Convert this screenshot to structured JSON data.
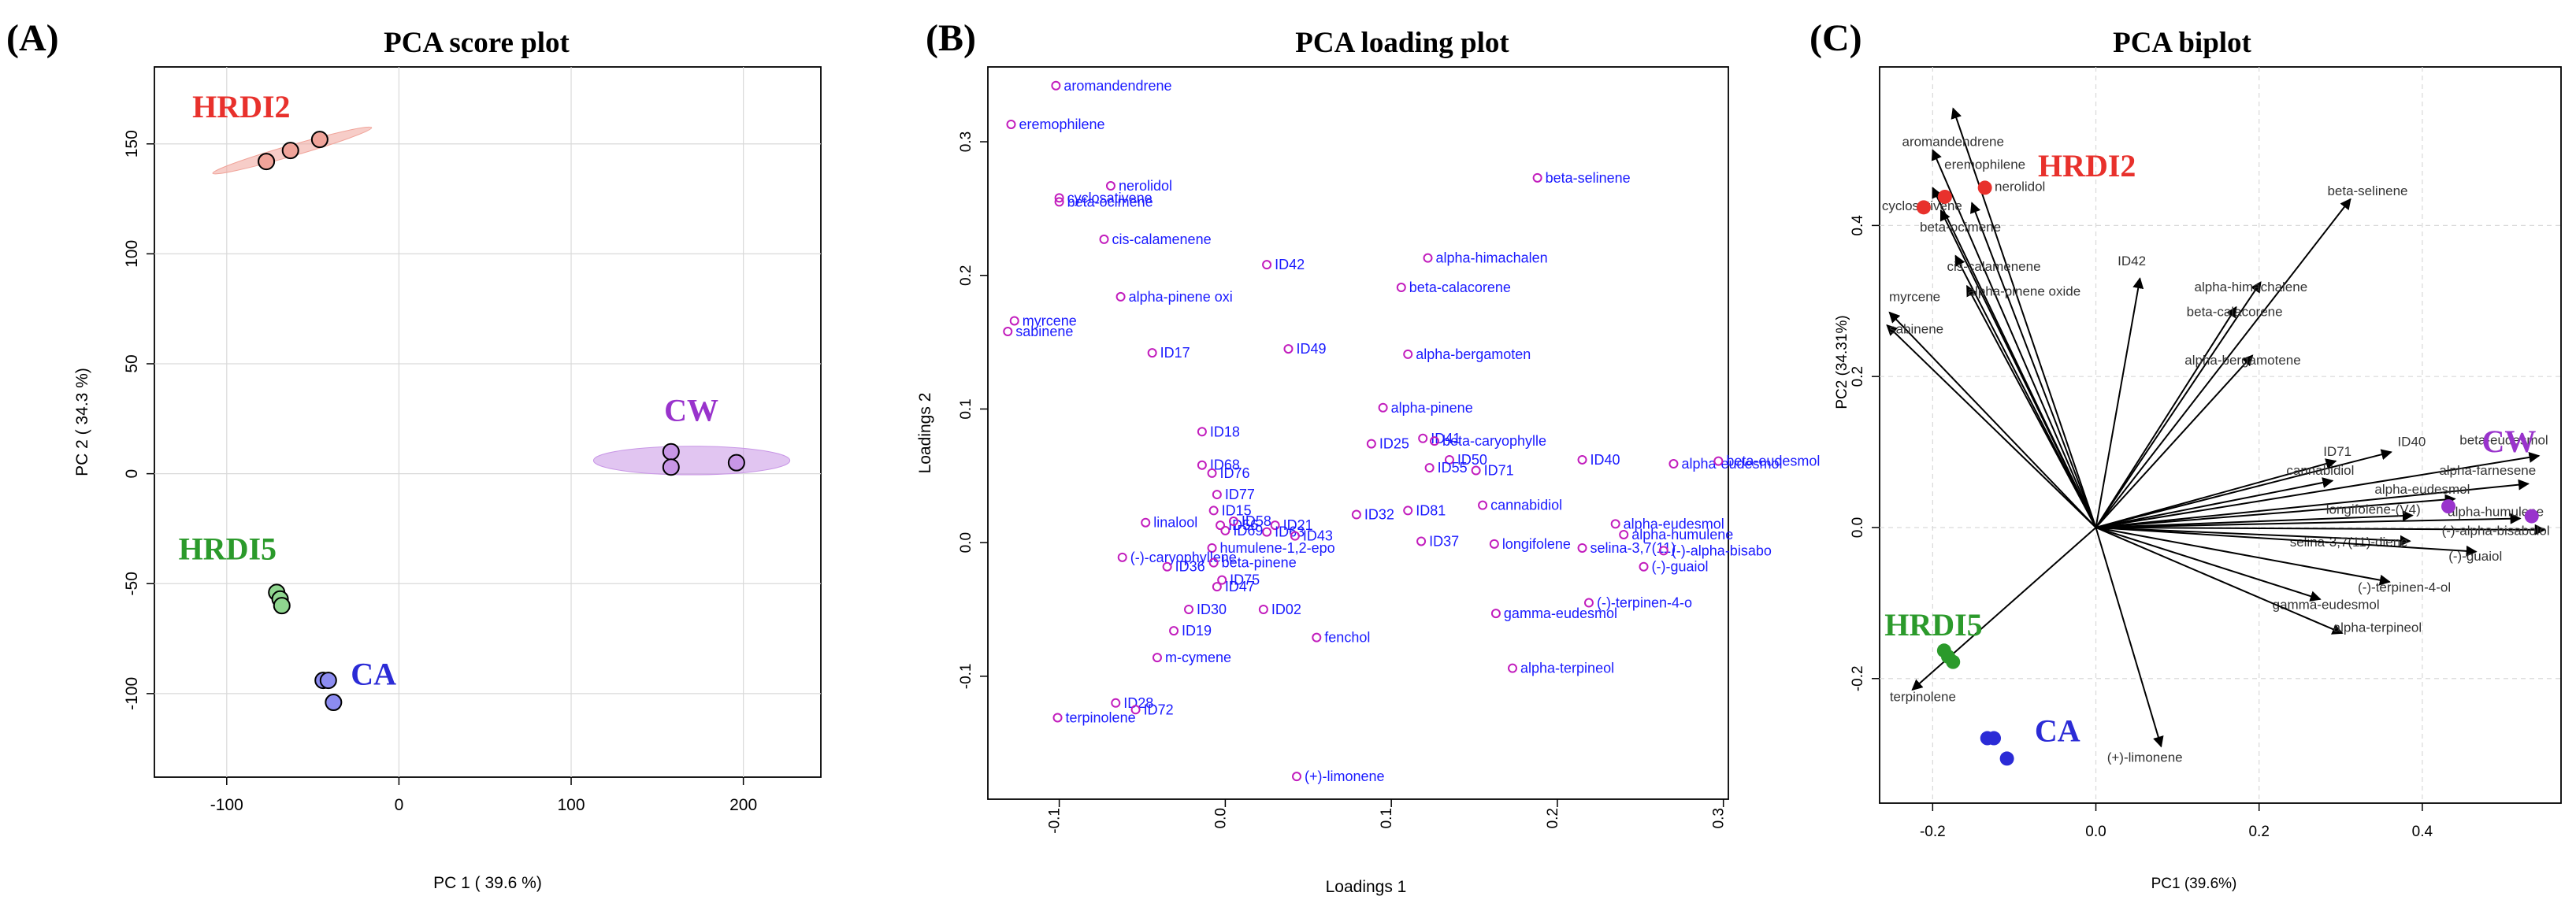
{
  "figure": {
    "panels": [
      {
        "letter": "(A)",
        "title": "PCA score plot"
      },
      {
        "letter": "(B)",
        "title": "PCA loading plot"
      },
      {
        "letter": "(C)",
        "title": "PCA biplot"
      }
    ]
  },
  "chart_data": [
    {
      "type": "scatter",
      "title": "PCA score plot",
      "xlabel": "PC 1 ( 39.6 %)",
      "ylabel": "PC 2 ( 34.3 %)",
      "xlim": [
        -142,
        245
      ],
      "ylim": [
        -138,
        185
      ],
      "xticks": [
        -100,
        0,
        100,
        200
      ],
      "xtick_labels": [
        "-100",
        "0",
        "100",
        "200"
      ],
      "yticks": [
        -100,
        -50,
        0,
        50,
        100,
        150
      ],
      "ytick_labels": [
        "-100",
        "-50",
        "0",
        "50",
        "100",
        "150"
      ],
      "grid": true,
      "groups": [
        {
          "name": "HRDI2",
          "color": "#e8312c",
          "fill": "#f0a49a",
          "points": [
            [
              -77,
              142
            ],
            [
              -63,
              147
            ],
            [
              -46,
              152
            ]
          ],
          "ellipse": {
            "cx": -62,
            "cy": 147,
            "rx": 48,
            "ry": 2.5,
            "angle": 0.28
          },
          "label_at": [
            -120,
            162
          ]
        },
        {
          "name": "CW",
          "color": "#9933cc",
          "fill": "#c896e6",
          "points": [
            [
              158,
              10
            ],
            [
              158,
              3
            ],
            [
              196,
              5
            ]
          ],
          "ellipse": {
            "cx": 170,
            "cy": 6,
            "rx": 57,
            "ry": 6.5,
            "angle": 0
          },
          "label_at": [
            154,
            24
          ]
        },
        {
          "name": "HRDI5",
          "color": "#2b9a2b",
          "fill": "#8fd68f",
          "points": [
            [
              -71,
              -54
            ],
            [
              -69,
              -57
            ],
            [
              -68,
              -60
            ]
          ],
          "ellipse": null,
          "label_at": [
            -128,
            -39
          ]
        },
        {
          "name": "CA",
          "color": "#2b2bd6",
          "fill": "#8c8cf0",
          "points": [
            [
              -44,
              -94
            ],
            [
              -41,
              -94
            ],
            [
              -38,
              -104
            ]
          ],
          "ellipse": null,
          "label_at": [
            -28,
            -96
          ]
        }
      ]
    },
    {
      "type": "scatter",
      "title": "PCA loading plot",
      "xlabel": "Loadings 1",
      "ylabel": "Loadings 2",
      "xlim": [
        -0.143,
        0.303
      ],
      "ylim": [
        -0.192,
        0.356
      ],
      "xticks": [
        -0.1,
        0.0,
        0.1,
        0.2,
        0.3
      ],
      "xtick_labels": [
        "-0.1",
        "0.0",
        "0.1",
        "0.2",
        "0.3"
      ],
      "yticks": [
        -0.1,
        0.0,
        0.1,
        0.2,
        0.3
      ],
      "ytick_labels": [
        "-0.1",
        "0.0",
        "0.1",
        "0.2",
        "0.3"
      ],
      "point_color": "#c21dbd",
      "label_color": "#1a1aff",
      "points": [
        {
          "label": "aromandendrene",
          "x": -0.102,
          "y": 0.342
        },
        {
          "label": "eremophilene",
          "x": -0.129,
          "y": 0.313
        },
        {
          "label": "nerolidol",
          "x": -0.069,
          "y": 0.267
        },
        {
          "label": "cyclosativene",
          "x": -0.1,
          "y": 0.258
        },
        {
          "label": "beta-ocimene",
          "x": -0.1,
          "y": 0.255
        },
        {
          "label": "cis-calamenene",
          "x": -0.073,
          "y": 0.227
        },
        {
          "label": "ID42",
          "x": 0.025,
          "y": 0.208
        },
        {
          "label": "alpha-pinene oxi",
          "x": -0.063,
          "y": 0.184
        },
        {
          "label": "myrcene",
          "x": -0.127,
          "y": 0.166
        },
        {
          "label": "sabinene",
          "x": -0.131,
          "y": 0.158
        },
        {
          "label": "ID17",
          "x": -0.044,
          "y": 0.142
        },
        {
          "label": "ID49",
          "x": 0.038,
          "y": 0.145
        },
        {
          "label": "beta-selinene",
          "x": 0.188,
          "y": 0.273
        },
        {
          "label": "alpha-himachalen",
          "x": 0.122,
          "y": 0.213
        },
        {
          "label": "beta-calacorene",
          "x": 0.106,
          "y": 0.191
        },
        {
          "label": "alpha-bergamoten",
          "x": 0.11,
          "y": 0.141
        },
        {
          "label": "alpha-pinene",
          "x": 0.095,
          "y": 0.101
        },
        {
          "label": "ID25",
          "x": 0.088,
          "y": 0.074
        },
        {
          "label": "ID41",
          "x": 0.119,
          "y": 0.078
        },
        {
          "label": "beta-caryophylle",
          "x": 0.126,
          "y": 0.076
        },
        {
          "label": "ID50",
          "x": 0.135,
          "y": 0.062
        },
        {
          "label": "ID55",
          "x": 0.123,
          "y": 0.056
        },
        {
          "label": "ID71",
          "x": 0.151,
          "y": 0.054
        },
        {
          "label": "ID40",
          "x": 0.215,
          "y": 0.062
        },
        {
          "label": "alpha-eudesmol",
          "x": 0.27,
          "y": 0.059
        },
        {
          "label": "beta-eudesmol",
          "x": 0.297,
          "y": 0.061
        },
        {
          "label": "cannabidiol",
          "x": 0.155,
          "y": 0.028
        },
        {
          "label": "ID32",
          "x": 0.079,
          "y": 0.021
        },
        {
          "label": "ID81",
          "x": 0.11,
          "y": 0.024
        },
        {
          "label": "ID37",
          "x": 0.118,
          "y": 0.001
        },
        {
          "label": "longifolene",
          "x": 0.162,
          "y": -0.001
        },
        {
          "label": "selina-3,7(11)",
          "x": 0.215,
          "y": -0.004
        },
        {
          "label": "alpha-eudesmol",
          "x": 0.235,
          "y": 0.014
        },
        {
          "label": "alpha-humulene",
          "x": 0.24,
          "y": 0.006
        },
        {
          "label": "(-)-alpha-bisabo",
          "x": 0.264,
          "y": -0.006
        },
        {
          "label": "(-)-guaiol",
          "x": 0.252,
          "y": -0.018
        },
        {
          "label": "(-)-terpinen-4-o",
          "x": 0.219,
          "y": -0.045
        },
        {
          "label": "gamma-eudesmol",
          "x": 0.163,
          "y": -0.053
        },
        {
          "label": "alpha-terpineol",
          "x": 0.173,
          "y": -0.094
        },
        {
          "label": "ID18",
          "x": -0.014,
          "y": 0.083
        },
        {
          "label": "ID68",
          "x": -0.014,
          "y": 0.058
        },
        {
          "label": "ID76",
          "x": -0.008,
          "y": 0.052
        },
        {
          "label": "ID77",
          "x": -0.005,
          "y": 0.036
        },
        {
          "label": "ID15",
          "x": -0.007,
          "y": 0.024
        },
        {
          "label": "ID21",
          "x": 0.03,
          "y": 0.013
        },
        {
          "label": "ID63",
          "x": 0.025,
          "y": 0.008
        },
        {
          "label": "ID43",
          "x": 0.042,
          "y": 0.005
        },
        {
          "label": "ID69",
          "x": 0.0,
          "y": 0.009
        },
        {
          "label": "ID56",
          "x": -0.003,
          "y": 0.013
        },
        {
          "label": "ID58",
          "x": 0.005,
          "y": 0.016
        },
        {
          "label": "linalool",
          "x": -0.048,
          "y": 0.015
        },
        {
          "label": "humulene-1,2-epo",
          "x": -0.008,
          "y": -0.004
        },
        {
          "label": "(-)-caryophyllene",
          "x": -0.062,
          "y": -0.011
        },
        {
          "label": "ID36",
          "x": -0.035,
          "y": -0.018
        },
        {
          "label": "beta-pinene",
          "x": -0.007,
          "y": -0.015
        },
        {
          "label": "ID75",
          "x": -0.002,
          "y": -0.028
        },
        {
          "label": "ID47",
          "x": -0.005,
          "y": -0.033
        },
        {
          "label": "ID30",
          "x": -0.022,
          "y": -0.05
        },
        {
          "label": "ID02",
          "x": 0.023,
          "y": -0.05
        },
        {
          "label": "ID19",
          "x": -0.031,
          "y": -0.066
        },
        {
          "label": "fenchol",
          "x": 0.055,
          "y": -0.071
        },
        {
          "label": "m-cymene",
          "x": -0.041,
          "y": -0.086
        },
        {
          "label": "ID28",
          "x": -0.066,
          "y": -0.12
        },
        {
          "label": "ID72",
          "x": -0.054,
          "y": -0.125
        },
        {
          "label": "terpinolene",
          "x": -0.101,
          "y": -0.131
        },
        {
          "label": "(+)-limonene",
          "x": 0.043,
          "y": -0.175
        }
      ]
    },
    {
      "type": "scatter",
      "title": "PCA biplot",
      "xlabel": "PC1 (39.6%)",
      "ylabel": "PC2 (34.31%)",
      "xlim": [
        -0.265,
        0.57
      ],
      "ylim": [
        -0.365,
        0.61
      ],
      "xticks": [
        -0.2,
        0.0,
        0.2,
        0.4
      ],
      "xtick_labels": [
        "-0.2",
        "0.0",
        "0.2",
        "0.4"
      ],
      "yticks": [
        -0.2,
        0.0,
        0.2,
        0.4
      ],
      "ytick_labels": [
        "-0.2",
        "0.0",
        "0.2",
        "0.4"
      ],
      "grid": true,
      "groups": [
        {
          "name": "HRDI2",
          "color": "#e8312c",
          "points": [
            [
              -0.211,
              0.424
            ],
            [
              -0.185,
              0.438
            ],
            [
              -0.136,
              0.45
            ]
          ],
          "label_at": [
            -0.071,
            0.465
          ]
        },
        {
          "name": "CW",
          "color": "#9933cc",
          "points": [
            [
              0.432,
              0.028
            ],
            [
              0.534,
              0.015
            ]
          ],
          "label_at": [
            0.473,
            0.1
          ]
        },
        {
          "name": "HRDI5",
          "color": "#2b9a2b",
          "points": [
            [
              -0.186,
              -0.163
            ],
            [
              -0.181,
              -0.171
            ],
            [
              -0.175,
              -0.178
            ]
          ],
          "label_at": [
            -0.259,
            -0.143
          ]
        },
        {
          "name": "CA",
          "color": "#2b2bd6",
          "points": [
            [
              -0.133,
              -0.279
            ],
            [
              -0.125,
              -0.279
            ],
            [
              -0.109,
              -0.306
            ]
          ],
          "label_at": [
            -0.075,
            -0.283
          ]
        }
      ],
      "arrows": [
        {
          "label": "aromandendrene",
          "x": -0.175,
          "y": 0.555,
          "lx": -0.175,
          "ly": 0.505
        },
        {
          "label": "eremophilene",
          "x": -0.2,
          "y": 0.5,
          "lx": -0.136,
          "ly": 0.475
        },
        {
          "label": "nerolidol",
          "x": -0.152,
          "y": 0.43,
          "lx": -0.093,
          "ly": 0.446
        },
        {
          "label": "cyclosativene",
          "x": -0.2,
          "y": 0.45,
          "lx": -0.213,
          "ly": 0.42
        },
        {
          "label": "beta-ocimene",
          "x": -0.19,
          "y": 0.42,
          "lx": -0.166,
          "ly": 0.392
        },
        {
          "label": "cis-calamenene",
          "x": -0.172,
          "y": 0.36,
          "lx": -0.125,
          "ly": 0.34
        },
        {
          "label": "alpha-pinene oxide",
          "x": -0.158,
          "y": 0.32,
          "lx": -0.088,
          "ly": 0.307
        },
        {
          "label": "ID42",
          "x": 0.054,
          "y": 0.33,
          "lx": 0.044,
          "ly": 0.347
        },
        {
          "label": "beta-selinene",
          "x": 0.312,
          "y": 0.435,
          "lx": 0.333,
          "ly": 0.44
        },
        {
          "label": "alpha-himachalene",
          "x": 0.202,
          "y": 0.325,
          "lx": 0.19,
          "ly": 0.313
        },
        {
          "label": "beta-calacorene",
          "x": 0.172,
          "y": 0.292,
          "lx": 0.17,
          "ly": 0.28
        },
        {
          "label": "alpha-bergamotene",
          "x": 0.192,
          "y": 0.228,
          "lx": 0.18,
          "ly": 0.216
        },
        {
          "label": "myrcene",
          "x": -0.253,
          "y": 0.285,
          "lx": -0.222,
          "ly": 0.3
        },
        {
          "label": "sabinene",
          "x": -0.256,
          "y": 0.268,
          "lx": -0.22,
          "ly": 0.257
        },
        {
          "label": "ID71",
          "x": 0.294,
          "y": 0.088,
          "lx": 0.296,
          "ly": 0.095
        },
        {
          "label": "ID40",
          "x": 0.362,
          "y": 0.1,
          "lx": 0.387,
          "ly": 0.108
        },
        {
          "label": "beta-eudesmol",
          "x": 0.543,
          "y": 0.095,
          "lx": 0.5,
          "ly": 0.11
        },
        {
          "label": "cannabidiol",
          "x": 0.29,
          "y": 0.062,
          "lx": 0.275,
          "ly": 0.07
        },
        {
          "label": "alpha-farnesene",
          "x": 0.53,
          "y": 0.058,
          "lx": 0.48,
          "ly": 0.07
        },
        {
          "label": "alpha-eudesmol",
          "x": 0.44,
          "y": 0.038,
          "lx": 0.4,
          "ly": 0.045
        },
        {
          "label": "longifolene-(V4)",
          "x": 0.388,
          "y": 0.016,
          "lx": 0.34,
          "ly": 0.018
        },
        {
          "label": "alpha-humulene",
          "x": 0.52,
          "y": 0.012,
          "lx": 0.49,
          "ly": 0.015
        },
        {
          "label": "(-)-alpha-bisabolol",
          "x": 0.55,
          "y": -0.003,
          "lx": 0.49,
          "ly": -0.01
        },
        {
          "label": "selina-3,7(11)-diene",
          "x": 0.385,
          "y": -0.018,
          "lx": 0.31,
          "ly": -0.025
        },
        {
          "label": "(-)-guaiol",
          "x": 0.466,
          "y": -0.032,
          "lx": 0.465,
          "ly": -0.044
        },
        {
          "label": "(-)-terpinen-4-ol",
          "x": 0.36,
          "y": -0.072,
          "lx": 0.378,
          "ly": -0.085
        },
        {
          "label": "gamma-eudesmol",
          "x": 0.275,
          "y": -0.095,
          "lx": 0.282,
          "ly": -0.108
        },
        {
          "label": "alpha-terpineol",
          "x": 0.302,
          "y": -0.14,
          "lx": 0.345,
          "ly": -0.138
        },
        {
          "label": "terpinolene",
          "x": -0.225,
          "y": -0.215,
          "lx": -0.212,
          "ly": -0.23
        },
        {
          "label": "(+)-limonene",
          "x": 0.08,
          "y": -0.29,
          "lx": 0.06,
          "ly": -0.31
        }
      ]
    }
  ]
}
